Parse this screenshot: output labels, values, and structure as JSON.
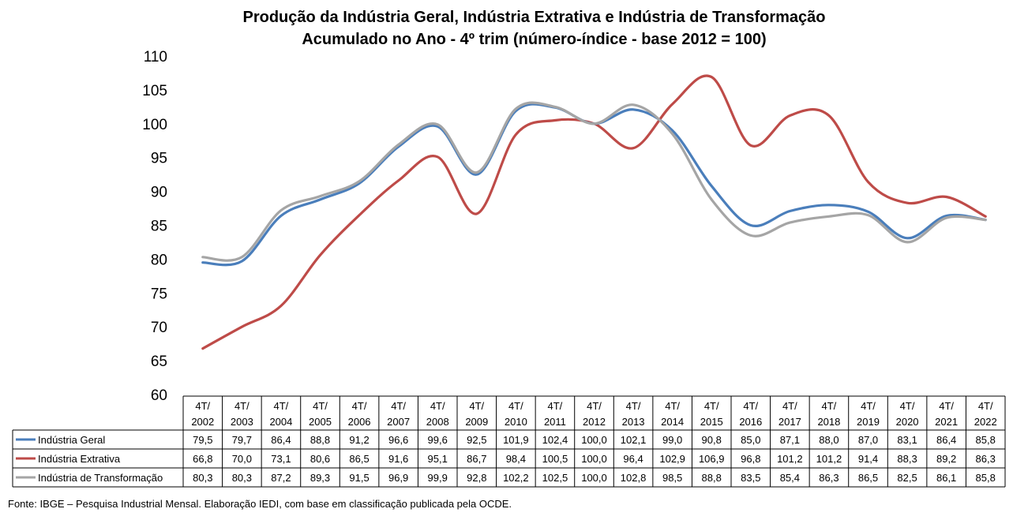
{
  "chart_data": {
    "type": "line",
    "title": "Produção da Indústria Geral, Indústria Extrativa e Indústria de Transformação",
    "subtitle": "Acumulado no Ano - 4º trim (número-índice - base 2012 = 100)",
    "categories": [
      [
        "4T/",
        "2002"
      ],
      [
        "4T/",
        "2003"
      ],
      [
        "4T/",
        "2004"
      ],
      [
        "4T/",
        "2005"
      ],
      [
        "4T/",
        "2006"
      ],
      [
        "4T/",
        "2007"
      ],
      [
        "4T/",
        "2008"
      ],
      [
        "4T/",
        "2009"
      ],
      [
        "4T/",
        "2010"
      ],
      [
        "4T/",
        "2011"
      ],
      [
        "4T/",
        "2012"
      ],
      [
        "4T/",
        "2013"
      ],
      [
        "4T/",
        "2014"
      ],
      [
        "4T/",
        "2015"
      ],
      [
        "4T/",
        "2016"
      ],
      [
        "4T/",
        "2017"
      ],
      [
        "4T/",
        "2018"
      ],
      [
        "4T/",
        "2019"
      ],
      [
        "4T/",
        "2020"
      ],
      [
        "4T/",
        "2021"
      ],
      [
        "4T/",
        "2022"
      ]
    ],
    "ylim": [
      60,
      110
    ],
    "yticks": [
      "60",
      "65",
      "70",
      "75",
      "80",
      "85",
      "90",
      "95",
      "100",
      "105",
      "110"
    ],
    "grid": false,
    "legend": "data-table below chart",
    "series": [
      {
        "name": "Indústria Geral",
        "color": "#4a7ebb",
        "values": [
          79.5,
          79.7,
          86.4,
          88.8,
          91.2,
          96.6,
          99.6,
          92.5,
          101.9,
          102.4,
          100.0,
          102.1,
          99.0,
          90.8,
          85.0,
          87.1,
          88.0,
          87.0,
          83.1,
          86.4,
          85.8
        ],
        "labels": [
          "79,5",
          "79,7",
          "86,4",
          "88,8",
          "91,2",
          "96,6",
          "99,6",
          "92,5",
          "101,9",
          "102,4",
          "100,0",
          "102,1",
          "99,0",
          "90,8",
          "85,0",
          "87,1",
          "88,0",
          "87,0",
          "83,1",
          "86,4",
          "85,8"
        ]
      },
      {
        "name": "Indústria Extrativa",
        "color": "#be4b48",
        "values": [
          66.8,
          70.0,
          73.1,
          80.6,
          86.5,
          91.6,
          95.1,
          86.7,
          98.4,
          100.5,
          100.0,
          96.4,
          102.9,
          106.9,
          96.8,
          101.2,
          101.2,
          91.4,
          88.3,
          89.2,
          86.3
        ],
        "labels": [
          "66,8",
          "70,0",
          "73,1",
          "80,6",
          "86,5",
          "91,6",
          "95,1",
          "86,7",
          "98,4",
          "100,5",
          "100,0",
          "96,4",
          "102,9",
          "106,9",
          "96,8",
          "101,2",
          "101,2",
          "91,4",
          "88,3",
          "89,2",
          "86,3"
        ]
      },
      {
        "name": "Indústria de Transformação",
        "color": "#a5a5a5",
        "values": [
          80.3,
          80.3,
          87.2,
          89.3,
          91.5,
          96.9,
          99.9,
          92.8,
          102.2,
          102.5,
          100.0,
          102.8,
          98.5,
          88.8,
          83.5,
          85.4,
          86.3,
          86.5,
          82.5,
          86.1,
          85.8
        ],
        "labels": [
          "80,3",
          "80,3",
          "87,2",
          "89,3",
          "91,5",
          "96,9",
          "99,9",
          "92,8",
          "102,2",
          "102,5",
          "100,0",
          "102,8",
          "98,5",
          "88,8",
          "83,5",
          "85,4",
          "86,3",
          "86,5",
          "82,5",
          "86,1",
          "85,8"
        ]
      }
    ]
  },
  "footer": {
    "source": "Fonte: IBGE – Pesquisa Industrial Mensal. Elaboração IEDI, com base em classificação publicada pela OCDE."
  }
}
